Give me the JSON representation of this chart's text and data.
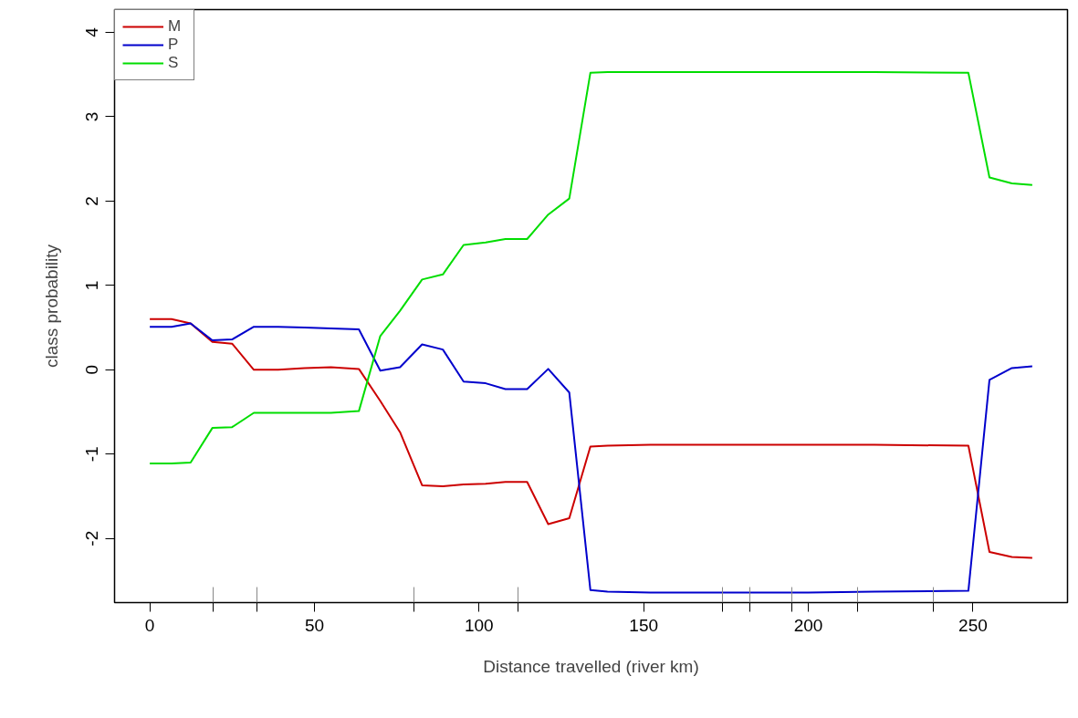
{
  "chart_data": {
    "type": "line",
    "xlabel": "Distance travelled (river km)",
    "ylabel": "class probability",
    "x": [
      0,
      6.6,
      12.4,
      19,
      25,
      31.6,
      39,
      47,
      55,
      63.5,
      70,
      76,
      82.7,
      89,
      95.3,
      102,
      108,
      114.6,
      121,
      127.4,
      133.8,
      139,
      152,
      200,
      220,
      248.6,
      255,
      261.8,
      268
    ],
    "series": [
      {
        "name": "M",
        "color": "#cc0000",
        "values": [
          0.6,
          0.6,
          0.55,
          0.33,
          0.31,
          0.0,
          0.0,
          0.02,
          0.03,
          0.01,
          -0.37,
          -0.74,
          -1.37,
          -1.38,
          -1.36,
          -1.35,
          -1.33,
          -1.33,
          -1.83,
          -1.76,
          -0.91,
          -0.9,
          -0.89,
          -0.89,
          -0.89,
          -0.9,
          -2.16,
          -2.22,
          -2.23
        ]
      },
      {
        "name": "P",
        "color": "#0000cc",
        "values": [
          0.51,
          0.51,
          0.55,
          0.35,
          0.36,
          0.51,
          0.51,
          0.5,
          0.49,
          0.48,
          -0.01,
          0.03,
          0.3,
          0.24,
          -0.14,
          -0.16,
          -0.23,
          -0.23,
          0.01,
          -0.27,
          -2.61,
          -2.63,
          -2.64,
          -2.64,
          -2.63,
          -2.62,
          -0.12,
          0.02,
          0.04
        ]
      },
      {
        "name": "S",
        "color": "#00dd00",
        "values": [
          -1.11,
          -1.11,
          -1.1,
          -0.69,
          -0.68,
          -0.51,
          -0.51,
          -0.51,
          -0.51,
          -0.49,
          0.4,
          0.7,
          1.07,
          1.13,
          1.48,
          1.51,
          1.55,
          1.55,
          1.84,
          2.03,
          3.52,
          3.53,
          3.53,
          3.53,
          3.53,
          3.52,
          2.28,
          2.21,
          2.19
        ]
      }
    ],
    "xlim": [
      -10.7,
      278.7
    ],
    "ylim": [
      -2.76,
      4.27
    ],
    "xticks": [
      0,
      50,
      100,
      150,
      200,
      250,
      {
        "value": 19.1,
        "label": null
      },
      {
        "value": 32.6,
        "label": null
      },
      {
        "value": 80.2,
        "label": null
      },
      {
        "value": 111.8,
        "label": null
      },
      {
        "value": 174,
        "label": null
      },
      {
        "value": 182.3,
        "label": null
      },
      {
        "value": 195,
        "label": null
      },
      {
        "value": 215,
        "label": null
      },
      {
        "value": 238,
        "label": null
      }
    ],
    "yticks": [
      -2,
      -1,
      0,
      1,
      2,
      3,
      4
    ],
    "grid": false,
    "legend": "top left",
    "line_style": "solid"
  }
}
